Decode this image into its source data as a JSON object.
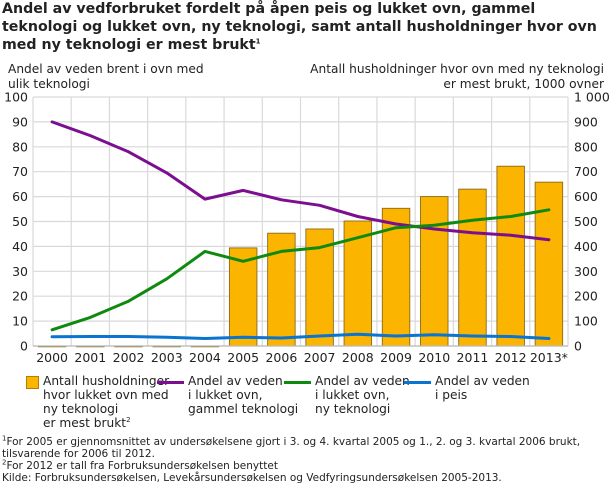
{
  "chart_data": {
    "type": "bar+line",
    "title": "Andel av vedforbruket fordelt på  åpen peis og lukket ovn, gammel teknologi og lukket ovn, ny teknologi, samt antall husholdninger hvor ovn med ny teknologi er mest brukt",
    "title_sup": "1",
    "ylabel_left": "Andel av veden brent i ovn med ulik teknologi",
    "ylabel_right": "Antall husholdninger hvor ovn med ny teknologi er mest brukt, 1000 ovner",
    "categories": [
      "2000",
      "2001",
      "2002",
      "2003",
      "2004",
      "2005",
      "2006",
      "2007",
      "2008",
      "2009",
      "2010",
      "2011",
      "2012",
      "2013*"
    ],
    "ylim_left": [
      0,
      100
    ],
    "yticks_left": [
      "0",
      "10",
      "20",
      "30",
      "40",
      "50",
      "60",
      "70",
      "80",
      "90",
      "100"
    ],
    "ylim_right": [
      0,
      1000
    ],
    "yticks_right": [
      "0",
      "100",
      "200",
      "300",
      "400",
      "500",
      "600",
      "700",
      "800",
      "900",
      "1 000"
    ],
    "grid": true,
    "legend_placement": "bottom",
    "bars": {
      "name": "Antall husholdninger hvor lukket ovn med ny teknologi er mest brukt",
      "name_sup": "2",
      "axis": "right",
      "color": "#fbb400",
      "values": [
        0,
        0,
        0,
        0,
        0,
        394,
        453,
        470,
        502,
        553,
        600,
        630,
        722,
        658
      ]
    },
    "series": [
      {
        "name": "Andel av veden i lukket ovn, gammel teknologi",
        "color": "#7b0f8f",
        "values": [
          90,
          84.5,
          78,
          69.5,
          59,
          62.5,
          58.7,
          56.5,
          52,
          49,
          47,
          45.5,
          44.5,
          42.7
        ]
      },
      {
        "name": "Andel av veden i lukket ovn, ny teknologi",
        "color": "#0f8a0f",
        "values": [
          6.5,
          11.5,
          18,
          27,
          38,
          34,
          38,
          39.5,
          43.5,
          47.5,
          48.5,
          50.5,
          52,
          54.7
        ]
      },
      {
        "name": "Andel av veden i peis",
        "color": "#0a74d0",
        "values": [
          3.7,
          3.8,
          3.8,
          3.5,
          3,
          3.5,
          3.2,
          4,
          4.7,
          4,
          4.5,
          4,
          3.8,
          3
        ]
      }
    ],
    "legend_lines": [
      [
        "Antall husholdninger",
        "hvor lukket ovn med",
        "ny teknologi",
        "er mest brukt"
      ],
      [
        "Andel av veden",
        "i lukket ovn,",
        "gammel teknologi"
      ],
      [
        "Andel av veden",
        "i lukket ovn,",
        "ny teknologi"
      ],
      [
        "Andel av veden",
        "i peis"
      ]
    ]
  },
  "notes": {
    "note1_sup": "1",
    "note1": "For 2005 er gjennomsnittet av undersøkelsene gjort i 3. og 4. kvartal 2005 og 1., 2. og 3. kvartal 2006 brukt,",
    "note1b": "tilsvarende for 2006 til 2012.",
    "note2_sup": "2",
    "note2": "For 2012 er tall fra Forbruksundersøkelsen benyttet",
    "source": "Kilde: Forbruksundersøkelsen, Levekårsundersøkelsen og Vedfyringsundersøkelsen 2005-2013."
  }
}
